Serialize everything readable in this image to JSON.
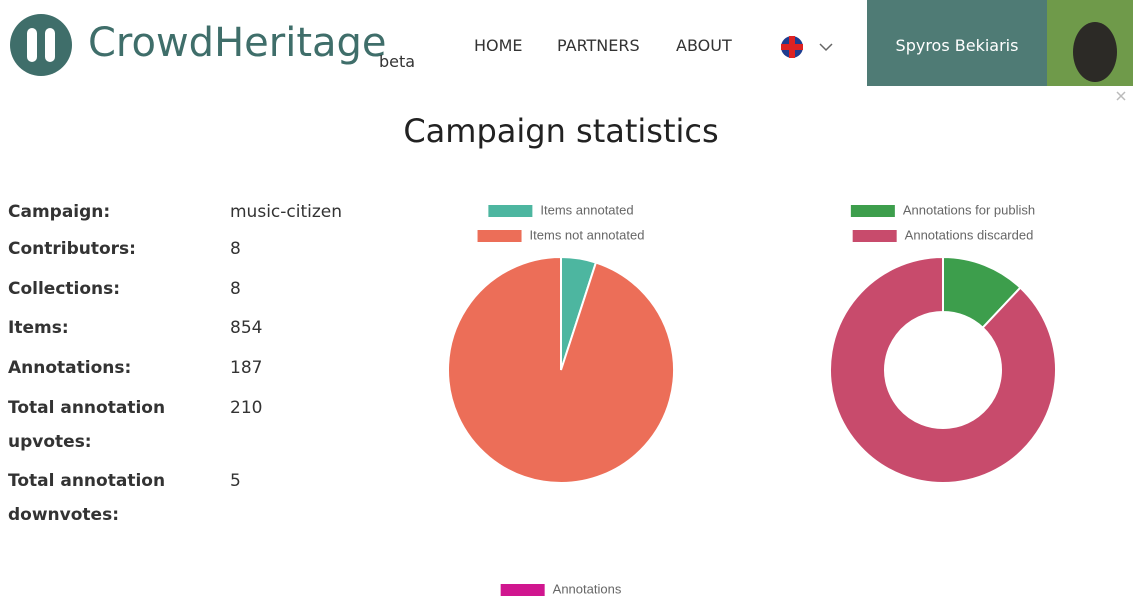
{
  "header": {
    "logo": "CrowdHeritage",
    "badge": "beta",
    "nav": [
      "HOME",
      "PARTNERS",
      "ABOUT"
    ],
    "user": "Spyros Bekiaris"
  },
  "title": "Campaign statistics",
  "stats": [
    [
      "Campaign:",
      "music-citizen"
    ],
    [
      "Contributors:",
      "8"
    ],
    [
      "Collections:",
      "8"
    ],
    [
      "Items:",
      "854"
    ],
    [
      "Annotations:",
      "187"
    ],
    [
      "Total annotation upvotes:",
      "210"
    ],
    [
      "Total annotation downvotes:",
      "5"
    ]
  ],
  "chart_data": [
    {
      "type": "pie",
      "categories": [
        "Items annotated",
        "Items not annotated"
      ],
      "values": [
        5,
        95
      ],
      "colors": [
        "#4db6a0",
        "#ec6e58"
      ]
    },
    {
      "type": "doughnut",
      "categories": [
        "Annotations for publish",
        "Annotations discarded"
      ],
      "values": [
        12,
        88
      ],
      "colors": [
        "#3d9e4c",
        "#c84b6c"
      ]
    },
    {
      "type": "bar",
      "series": [
        {
          "name": "Annotations",
          "color": "#d0168f",
          "values": []
        }
      ]
    }
  ]
}
